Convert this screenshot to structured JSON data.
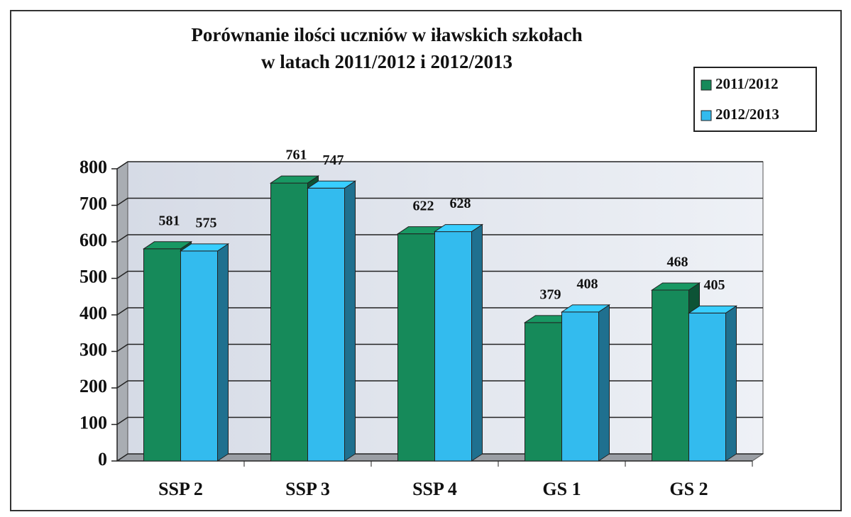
{
  "chart_data": {
    "type": "bar",
    "title": "Porównanie ilości uczniów w iławskich szkołach",
    "subtitle": "w latach 2011/2012 i 2012/2013",
    "categories": [
      "SSP 2",
      "SSP 3",
      "SSP 4",
      "GS 1",
      "GS 2"
    ],
    "series": [
      {
        "name": "2011/2012",
        "color": "#168a5a",
        "values": [
          581,
          761,
          622,
          379,
          468
        ]
      },
      {
        "name": "2012/2013",
        "color": "#33bbee",
        "values": [
          575,
          747,
          628,
          408,
          405
        ]
      }
    ],
    "ylim": [
      0,
      800
    ],
    "yticks": [
      0,
      100,
      200,
      300,
      400,
      500,
      600,
      700,
      800
    ],
    "grid": true,
    "legend": "top-right"
  }
}
